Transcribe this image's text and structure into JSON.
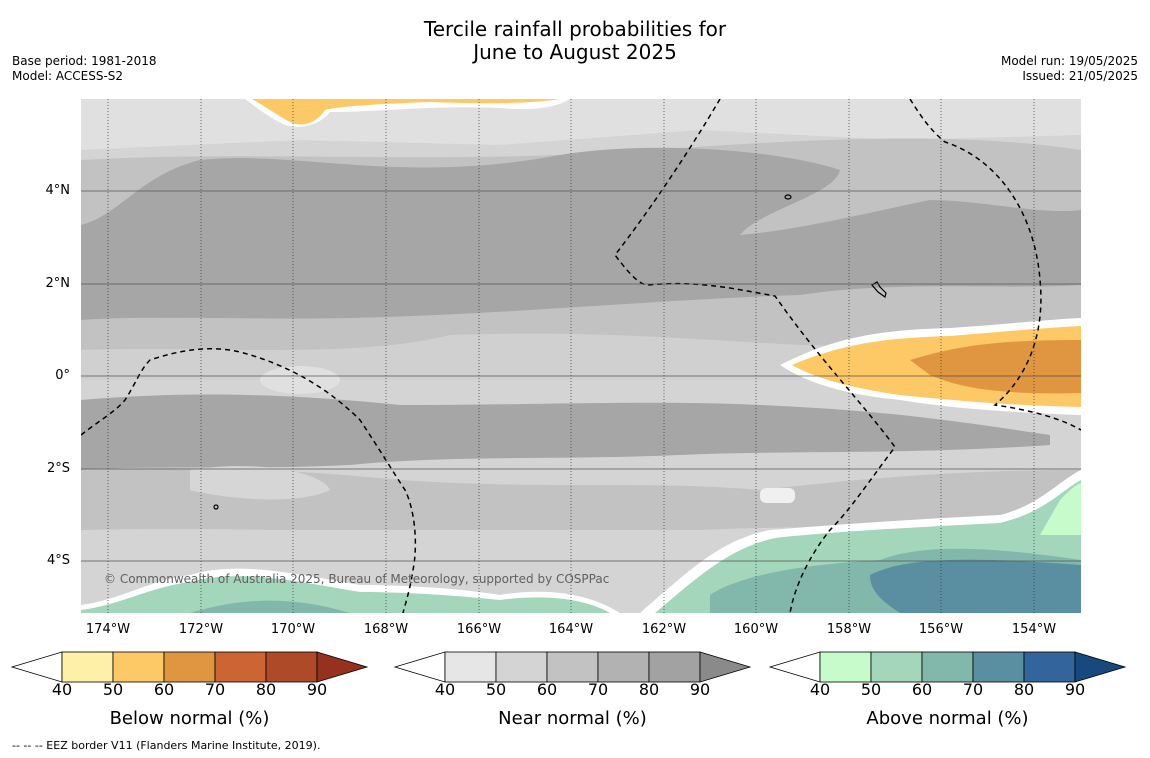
{
  "title": {
    "line1": "Tercile rainfall probabilities for",
    "line2": "June to August 2025"
  },
  "meta_left": {
    "line1": "Base period: 1981-2018",
    "line2": "Model: ACCESS-S2"
  },
  "meta_right": {
    "line1": "Model run: 19/05/2025",
    "line2": "Issued: 21/05/2025"
  },
  "latitudes": [
    "4°N",
    "2°N",
    "0°",
    "2°S",
    "4°S"
  ],
  "longitudes": [
    "174°W",
    "172°W",
    "170°W",
    "168°W",
    "166°W",
    "164°W",
    "162°W",
    "160°W",
    "158°W",
    "156°W",
    "154°W"
  ],
  "copyright": "© Commonwealth of Australia 2025, Bureau of Meteorology, supported by COSPPac",
  "footnote": "--  --  -- EEZ border V11 (Flanders Marine Institute, 2019).",
  "colorbars": [
    {
      "name": "Below normal (%)",
      "ticks": [
        "40",
        "50",
        "60",
        "70",
        "80",
        "90"
      ],
      "colors": [
        "#fff0a8",
        "#fdc866",
        "#e09540",
        "#cd6433",
        "#af4a28",
        "#96311f"
      ]
    },
    {
      "name": "Near normal (%)",
      "ticks": [
        "40",
        "50",
        "60",
        "70",
        "80",
        "90"
      ],
      "colors": [
        "#e6e6e6",
        "#d4d4d4",
        "#c2c2c2",
        "#b2b2b2",
        "#a2a2a2",
        "#8a8a8a"
      ]
    },
    {
      "name": "Above normal (%)",
      "ticks": [
        "40",
        "50",
        "60",
        "70",
        "80",
        "90"
      ],
      "colors": [
        "#c8fbcc",
        "#a3d6bb",
        "#82b7ab",
        "#5a8fa2",
        "#33649b",
        "#17497f"
      ]
    }
  ]
}
